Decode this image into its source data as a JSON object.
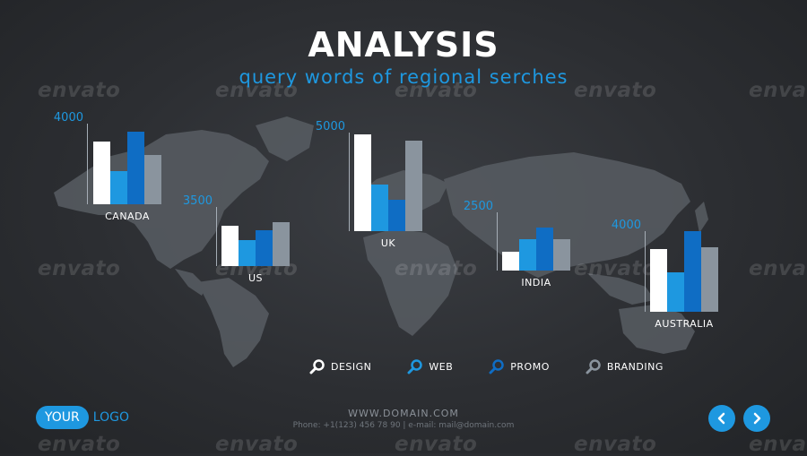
{
  "header": {
    "title": "ANALYSIS",
    "subtitle": "query words of regional serches"
  },
  "watermark_text": "envato",
  "colors": {
    "accent": "#1e98e0",
    "design": "#ffffff",
    "web": "#1e98e0",
    "promo": "#0f6dc4",
    "branding": "#8a949e"
  },
  "regions": [
    {
      "name": "CANADA",
      "max": "4000",
      "values": [
        3100,
        1650,
        3600,
        2450
      ]
    },
    {
      "name": "US",
      "max": "3500",
      "values": [
        2400,
        1530,
        2100,
        2600
      ]
    },
    {
      "name": "UK",
      "max": "5000",
      "values": [
        4900,
        2350,
        1600,
        4600
      ]
    },
    {
      "name": "INDIA",
      "max": "2500",
      "values": [
        800,
        1350,
        1850,
        1350
      ]
    },
    {
      "name": "AUSTRALIA",
      "max": "4000",
      "values": [
        3130,
        1940,
        4100,
        3200
      ]
    }
  ],
  "legend": [
    {
      "label": "DESIGN",
      "icon": "magnifier-icon"
    },
    {
      "label": "WEB",
      "icon": "magnifier-icon"
    },
    {
      "label": "PROMO",
      "icon": "magnifier-icon"
    },
    {
      "label": "BRANDING",
      "icon": "magnifier-icon"
    }
  ],
  "footer": {
    "domain": "WWW.DOMAIN.COM",
    "contact": "Phone: +1(123) 456 78 90 | e-mail: mail@domain.com"
  },
  "logo": {
    "pill": "YOUR",
    "text": "LOGO"
  },
  "nav": {
    "prev_icon": "chevron-left-icon",
    "next_icon": "chevron-right-icon"
  }
}
